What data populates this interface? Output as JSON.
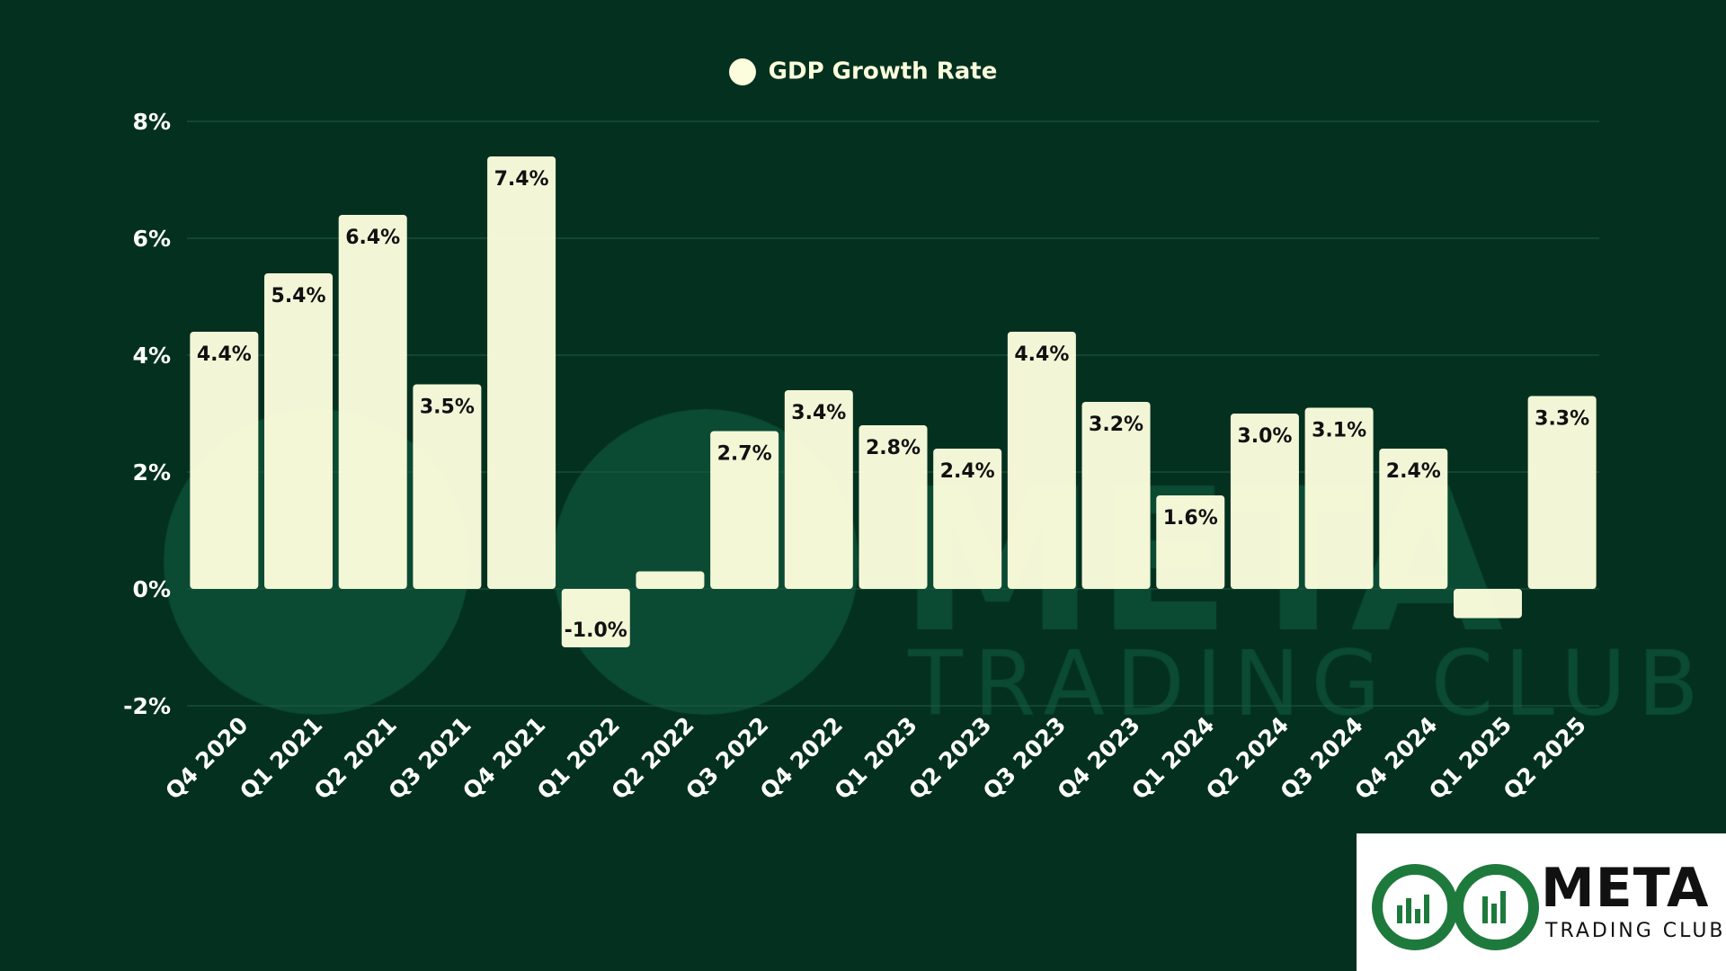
{
  "legend": {
    "label": "GDP Growth Rate"
  },
  "colors": {
    "background": "#04311f",
    "bar": "#fbfddc",
    "grid": "#1f5a40",
    "label_text": "#111111",
    "axis_text": "#ffffff",
    "watermark": "#0b4a33"
  },
  "watermark": {
    "line1": "META",
    "line2": "TRADING CLUB"
  },
  "logo": {
    "line1": "META",
    "line2": "TRADING CLUB",
    "brand_color": "#1e7a3c"
  },
  "chart_data": {
    "type": "bar",
    "title": "",
    "xlabel": "",
    "ylabel": "",
    "ylim": [
      -2,
      8
    ],
    "yticks": [
      -2,
      0,
      2,
      4,
      6,
      8
    ],
    "ytick_labels": [
      "-2%",
      "0%",
      "2%",
      "4%",
      "6%",
      "8%"
    ],
    "grid": true,
    "legend_position": "top-center",
    "categories": [
      "Q4 2020",
      "Q1 2021",
      "Q2 2021",
      "Q3 2021",
      "Q4 2021",
      "Q1 2022",
      "Q2 2022",
      "Q3 2022",
      "Q4 2022",
      "Q1 2023",
      "Q2 2023",
      "Q3 2023",
      "Q4 2023",
      "Q1 2024",
      "Q2 2024",
      "Q3 2024",
      "Q4 2024",
      "Q1 2025",
      "Q2 2025"
    ],
    "series": [
      {
        "name": "GDP Growth Rate",
        "values": [
          4.4,
          5.4,
          6.4,
          3.5,
          7.4,
          -1.0,
          0.3,
          2.7,
          3.4,
          2.8,
          2.4,
          4.4,
          3.2,
          1.6,
          3.0,
          3.1,
          2.4,
          -0.5,
          3.3
        ],
        "data_labels": [
          "4.4%",
          "5.4%",
          "6.4%",
          "3.5%",
          "7.4%",
          "-1.0%",
          "",
          "2.7%",
          "3.4%",
          "2.8%",
          "2.4%",
          "4.4%",
          "3.2%",
          "1.6%",
          "3.0%",
          "3.1%",
          "2.4%",
          "",
          "3.3%"
        ]
      }
    ]
  }
}
